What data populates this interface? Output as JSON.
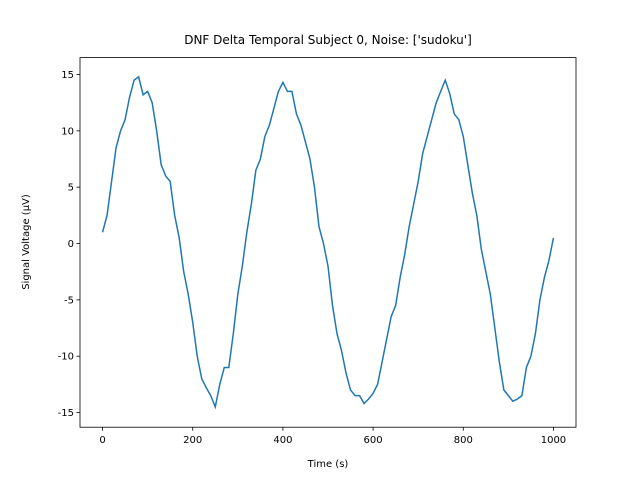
{
  "chart_data": {
    "type": "line",
    "title": "DNF Delta Temporal Subject 0, Noise: ['sudoku']",
    "xlabel": "Time (s)",
    "ylabel": "Signal Voltage (μV)",
    "x": [
      0,
      10,
      20,
      30,
      40,
      50,
      60,
      70,
      80,
      90,
      100,
      110,
      120,
      130,
      140,
      150,
      160,
      170,
      180,
      190,
      200,
      210,
      220,
      230,
      240,
      250,
      260,
      270,
      280,
      290,
      300,
      310,
      320,
      330,
      340,
      350,
      360,
      370,
      380,
      390,
      400,
      410,
      420,
      430,
      440,
      450,
      460,
      470,
      480,
      490,
      500,
      510,
      520,
      530,
      540,
      550,
      560,
      570,
      580,
      590,
      600,
      610,
      620,
      630,
      640,
      650,
      660,
      670,
      680,
      690,
      700,
      710,
      720,
      730,
      740,
      750,
      760,
      770,
      780,
      790,
      800,
      810,
      820,
      830,
      840,
      850,
      860,
      870,
      880,
      890,
      900,
      910,
      920,
      930,
      940,
      950,
      960,
      970,
      980,
      990,
      1000
    ],
    "series": [
      {
        "name": "signal",
        "color": "#1f77b4",
        "values": [
          1,
          2.5,
          5.5,
          8.5,
          10,
          11,
          13,
          14.5,
          14.8,
          13.2,
          13.5,
          12.5,
          10,
          7,
          6,
          5.5,
          2.5,
          0.5,
          -2.5,
          -4.5,
          -7,
          -10,
          -12,
          -12.8,
          -13.5,
          -14.5,
          -12.5,
          -11,
          -11,
          -8,
          -4.5,
          -2,
          1,
          3.5,
          6.5,
          7.5,
          9.5,
          10.5,
          12,
          13.5,
          14.3,
          13.5,
          13.5,
          11.5,
          10.5,
          9,
          7.5,
          5,
          1.5,
          0,
          -2,
          -5.5,
          -8,
          -9.5,
          -11.5,
          -13,
          -13.5,
          -13.5,
          -14.2,
          -13.8,
          -13.3,
          -12.5,
          -10.5,
          -8.5,
          -6.5,
          -5.5,
          -3,
          -1,
          1.5,
          3.5,
          5.5,
          8,
          9.5,
          11,
          12.5,
          13.5,
          14.5,
          13.3,
          11.5,
          11,
          9.5,
          7,
          4.5,
          2.5,
          -0.5,
          -2.5,
          -4.5,
          -7.5,
          -10.5,
          -13,
          -13.5,
          -14,
          -13.8,
          -13.5,
          -11,
          -10,
          -8,
          -5,
          -3,
          -1.5,
          0.5
        ]
      }
    ],
    "xlim": [
      -50,
      1050
    ],
    "ylim": [
      -16.3,
      16.5
    ],
    "xticks": [
      0,
      200,
      400,
      600,
      800,
      1000
    ],
    "yticks": [
      -15,
      -10,
      -5,
      0,
      5,
      10,
      15
    ],
    "grid": false
  }
}
